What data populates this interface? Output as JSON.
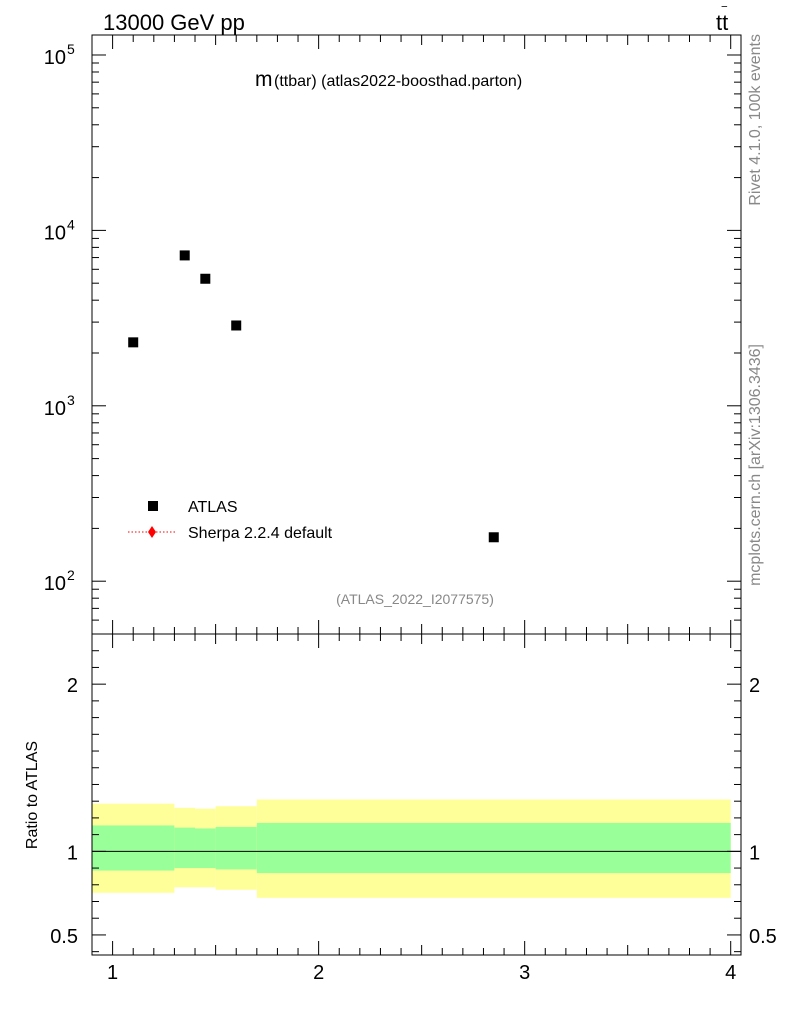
{
  "header": {
    "energy_label": "13000 GeV pp",
    "process_main": "tt",
    "process_bar": "‾"
  },
  "side_labels": {
    "rivet": "Rivet 4.1.0,  100k events",
    "mcplots": "mcplots.cern.ch [arXiv:1306.3436]"
  },
  "chart_data": [
    {
      "type": "scatter",
      "title": "m(ttbar) (atlas2022-boosthad.parton)",
      "title_main": "m",
      "title_rest": "(ttbar)  (atlas2022-boosthad.parton)",
      "watermark": "(ATLAS_2022_I2077575)",
      "xlabel": "",
      "ylabel": "",
      "yscale": "log",
      "xlim": [
        0.9,
        4.05
      ],
      "ylim": [
        50,
        130000
      ],
      "yticks": [
        {
          "value": 100,
          "base": "10",
          "exp": "2"
        },
        {
          "value": 1000,
          "base": "10",
          "exp": "3"
        },
        {
          "value": 10000,
          "base": "10",
          "exp": "4"
        },
        {
          "value": 100000,
          "base": "10",
          "exp": "5"
        }
      ],
      "series": [
        {
          "name": "ATLAS",
          "color": "#000000",
          "marker": "square",
          "x": [
            1.1,
            1.35,
            1.45,
            1.6,
            2.85
          ],
          "y": [
            2300,
            7200,
            5300,
            2870,
            178
          ]
        }
      ],
      "legend": [
        {
          "label": "ATLAS",
          "marker": "square",
          "color": "#000000"
        },
        {
          "label": "Sherpa 2.2.4 default",
          "marker": "diamond-dotted-line",
          "color": "#ff0000"
        }
      ],
      "legend_position": "lower-left"
    },
    {
      "type": "area",
      "ylabel": "Ratio to ATLAS",
      "xlim": [
        0.9,
        4.05
      ],
      "ylim": [
        0.38,
        2.3
      ],
      "xticks": [
        "1",
        "2",
        "3",
        "4"
      ],
      "yticks": [
        "0.5",
        "1",
        "2"
      ],
      "ytick_values": [
        0.5,
        1,
        2
      ],
      "reference_line": 1,
      "bins": [
        {
          "x0": 0.9,
          "x1": 1.3,
          "inner": [
            0.885,
            1.155
          ],
          "outer": [
            0.752,
            1.285
          ]
        },
        {
          "x0": 1.3,
          "x1": 1.4,
          "inner": [
            0.9,
            1.142
          ],
          "outer": [
            0.785,
            1.26
          ]
        },
        {
          "x0": 1.4,
          "x1": 1.5,
          "inner": [
            0.9,
            1.137
          ],
          "outer": [
            0.785,
            1.255
          ]
        },
        {
          "x0": 1.5,
          "x1": 1.7,
          "inner": [
            0.892,
            1.146
          ],
          "outer": [
            0.77,
            1.27
          ]
        },
        {
          "x0": 1.7,
          "x1": 4.0,
          "inner": [
            0.87,
            1.17
          ],
          "outer": [
            0.722,
            1.31
          ]
        }
      ],
      "colors": {
        "inner": "#99ff99",
        "outer": "#ffff99"
      }
    }
  ]
}
